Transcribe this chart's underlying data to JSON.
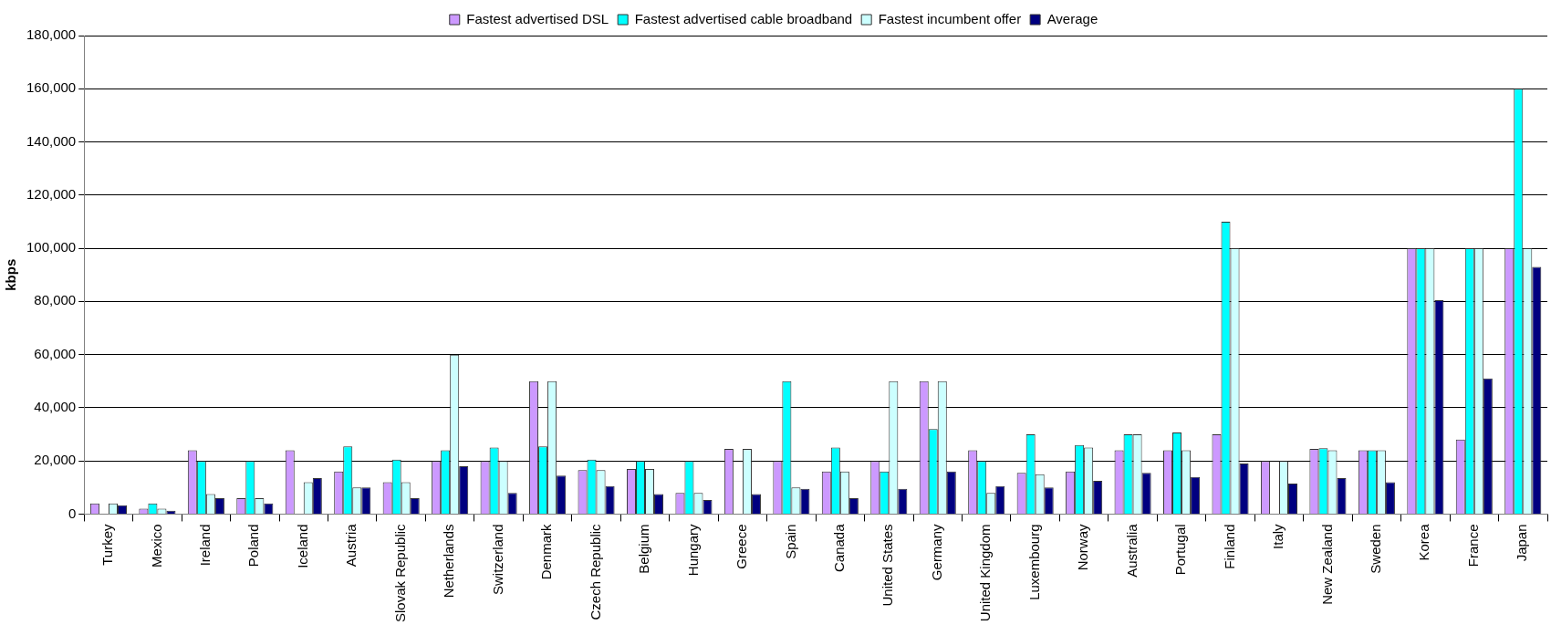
{
  "chart_data": {
    "type": "bar",
    "ylabel": "kbps",
    "categories": [
      "Turkey",
      "Mexico",
      "Ireland",
      "Poland",
      "Iceland",
      "Austria",
      "Slovak Republic",
      "Netherlands",
      "Switzerland",
      "Denmark",
      "Czech Republic",
      "Belgium",
      "Hungary",
      "Greece",
      "Spain",
      "Canada",
      "United States",
      "Germany",
      "United Kingdom",
      "Luxembourg",
      "Norway",
      "Australia",
      "Portugal",
      "Finland",
      "Italy",
      "New Zealand",
      "Sweden",
      "Korea",
      "France",
      "Japan"
    ],
    "series": [
      {
        "name": "Fastest advertised DSL",
        "color": "#cc99ff",
        "values": [
          4000,
          2000,
          24000,
          6000,
          24000,
          16000,
          12000,
          20000,
          20000,
          50000,
          16500,
          17000,
          8000,
          24500,
          20000,
          16000,
          20000,
          50000,
          24000,
          15500,
          16000,
          24000,
          24000,
          30000,
          20000,
          24500,
          24000,
          100000,
          28000,
          100000
        ]
      },
      {
        "name": "Fastest advertised cable broadband",
        "color": "#00ffff",
        "values": [
          null,
          4000,
          20000,
          20000,
          null,
          25500,
          20500,
          24000,
          25000,
          25500,
          20500,
          20000,
          20000,
          null,
          50000,
          25000,
          16000,
          32000,
          20000,
          30000,
          26000,
          30000,
          30700,
          110000,
          null,
          24800,
          24000,
          100000,
          100000,
          160000
        ]
      },
      {
        "name": "Fastest incumbent offer",
        "color": "#ccffff",
        "values": [
          4000,
          2000,
          7500,
          6000,
          12000,
          10000,
          12000,
          60000,
          20000,
          50000,
          16500,
          17000,
          8000,
          24500,
          10000,
          16000,
          50000,
          50000,
          8000,
          15000,
          25000,
          30000,
          24000,
          100000,
          20000,
          24000,
          24000,
          100000,
          100000,
          100000
        ]
      },
      {
        "name": "Average",
        "color": "#000080",
        "values": [
          3300,
          1300,
          6000,
          4000,
          13500,
          10000,
          6000,
          18000,
          8000,
          14500,
          10500,
          7500,
          5300,
          7500,
          9500,
          6000,
          9500,
          16000,
          10500,
          10000,
          12500,
          15500,
          14000,
          19000,
          11500,
          13500,
          12000,
          80500,
          51000,
          93000
        ]
      }
    ],
    "ylim": [
      0,
      180000
    ],
    "yticks": [
      {
        "value": 0,
        "label": "0"
      },
      {
        "value": 20000,
        "label": "20,000"
      },
      {
        "value": 40000,
        "label": "40,000"
      },
      {
        "value": 60000,
        "label": "60,000"
      },
      {
        "value": 80000,
        "label": "80,000"
      },
      {
        "value": 100000,
        "label": "100,000"
      },
      {
        "value": 120000,
        "label": "120,000"
      },
      {
        "value": 140000,
        "label": "140,000"
      },
      {
        "value": 160000,
        "label": "160,000"
      },
      {
        "value": 180000,
        "label": "180,000"
      }
    ],
    "grid": "y",
    "legend": "top"
  }
}
